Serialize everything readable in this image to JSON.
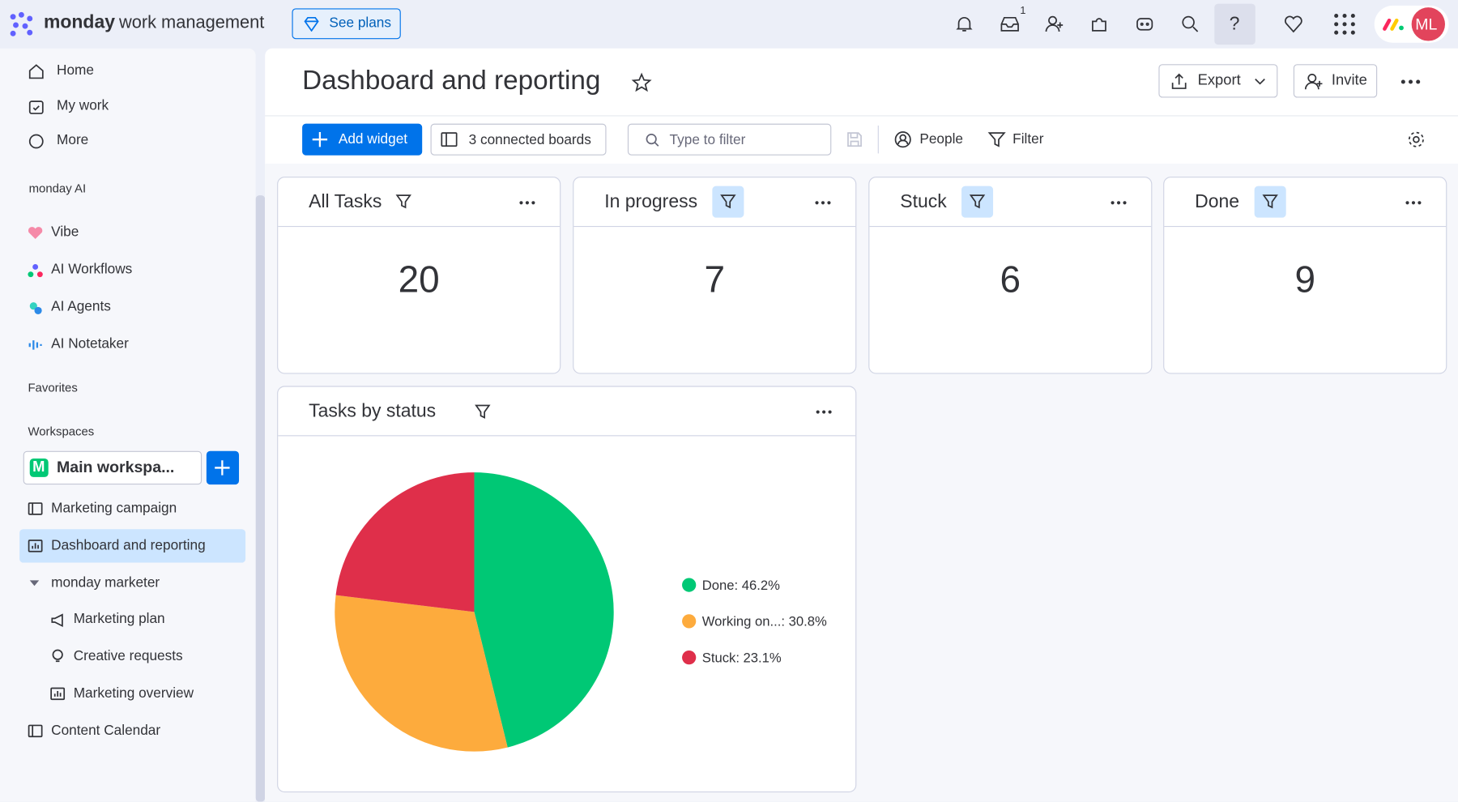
{
  "topbar": {
    "brand_bold": "monday",
    "brand_rest": "work management",
    "see_plans": "See plans",
    "inbox_badge": "1",
    "help": "?",
    "avatar": "ML"
  },
  "sidebar": {
    "nav": [
      "Home",
      "My work",
      "More"
    ],
    "ai_section": "monday AI",
    "ai_items": [
      "Vibe",
      "AI Workflows",
      "AI Agents",
      "AI Notetaker"
    ],
    "favorites": "Favorites",
    "workspaces": "Workspaces",
    "workspace_initial": "M",
    "workspace_name": "Main workspa...",
    "boards": [
      "Marketing campaign",
      "Dashboard and reporting",
      "monday marketer",
      "Marketing plan",
      "Creative requests",
      "Marketing overview",
      "Content Calendar"
    ]
  },
  "header": {
    "title": "Dashboard and reporting",
    "export": "Export",
    "invite": "Invite"
  },
  "toolbar": {
    "add_widget": "Add widget",
    "connected_boards": "3 connected boards",
    "filter_placeholder": "Type to filter",
    "people": "People",
    "filter": "Filter"
  },
  "number_widgets": [
    {
      "title": "All Tasks",
      "value": 20
    },
    {
      "title": "In progress",
      "value": 7
    },
    {
      "title": "Stuck",
      "value": 6
    },
    {
      "title": "Done",
      "value": 9
    }
  ],
  "chart_data": {
    "type": "pie",
    "title": "Tasks by status",
    "legend_labels": [
      "Done: 46.2%",
      "Working on...: 30.8%",
      "Stuck: 23.1%"
    ],
    "values": [
      46.2,
      30.8,
      23.1
    ],
    "colors": [
      "#00c875",
      "#fdab3d",
      "#df2f4a"
    ]
  }
}
